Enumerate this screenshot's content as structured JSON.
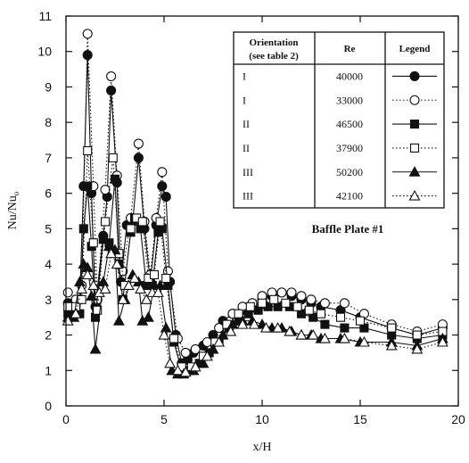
{
  "chart_data": {
    "type": "line",
    "title": "",
    "xlabel": "x/H",
    "ylabel": "Nu/Nu",
    "ylabel_subscript": "o",
    "xlim": [
      0,
      20
    ],
    "ylim": [
      0,
      11
    ],
    "xticks": [
      0,
      5,
      10,
      15,
      20
    ],
    "yticks": [
      0,
      1,
      2,
      3,
      4,
      5,
      6,
      7,
      8,
      9,
      10,
      11
    ],
    "grid": false,
    "legend_table": {
      "headers": [
        "Orientation",
        "(see table 2)",
        "Re",
        "Legend"
      ],
      "rows": [
        {
          "orientation": "I",
          "re": "40000"
        },
        {
          "orientation": "I",
          "re": "33000"
        },
        {
          "orientation": "II",
          "re": "46500"
        },
        {
          "orientation": "II",
          "re": "37900"
        },
        {
          "orientation": "III",
          "re": "50200"
        },
        {
          "orientation": "III",
          "re": "42100"
        }
      ]
    },
    "annotation": "Baffle Plate #1",
    "series": [
      {
        "marker": "circle-filled",
        "line": "solid",
        "points": [
          [
            0.1,
            2.9
          ],
          [
            0.4,
            2.8
          ],
          [
            0.7,
            3.0
          ],
          [
            0.9,
            6.2
          ],
          [
            1.1,
            9.9
          ],
          [
            1.3,
            6.0
          ],
          [
            1.5,
            2.8
          ],
          [
            1.9,
            4.8
          ],
          [
            2.1,
            5.9
          ],
          [
            2.3,
            8.9
          ],
          [
            2.6,
            6.3
          ],
          [
            2.8,
            3.5
          ],
          [
            3.1,
            5.1
          ],
          [
            3.4,
            5.2
          ],
          [
            3.7,
            7.0
          ],
          [
            4.0,
            5.0
          ],
          [
            4.3,
            3.5
          ],
          [
            4.6,
            5.1
          ],
          [
            4.9,
            6.2
          ],
          [
            5.1,
            5.9
          ],
          [
            5.3,
            3.5
          ],
          [
            5.6,
            2.0
          ],
          [
            5.9,
            1.2
          ],
          [
            6.2,
            1.3
          ],
          [
            6.5,
            1.5
          ],
          [
            7.0,
            1.7
          ],
          [
            7.5,
            2.0
          ],
          [
            8.0,
            2.4
          ],
          [
            8.5,
            2.6
          ],
          [
            9.0,
            2.7
          ],
          [
            9.5,
            2.8
          ],
          [
            10.0,
            3.0
          ],
          [
            10.5,
            3.1
          ],
          [
            11.0,
            3.2
          ],
          [
            11.5,
            3.1
          ],
          [
            12.0,
            3.0
          ],
          [
            12.5,
            2.9
          ],
          [
            13.0,
            2.8
          ],
          [
            14.0,
            2.7
          ],
          [
            15.0,
            2.5
          ],
          [
            16.6,
            2.2
          ],
          [
            17.9,
            2.0
          ],
          [
            19.2,
            2.2
          ]
        ]
      },
      {
        "marker": "circle-open",
        "line": "dotted",
        "points": [
          [
            0.1,
            3.2
          ],
          [
            0.5,
            3.0
          ],
          [
            0.8,
            3.4
          ],
          [
            1.1,
            10.5
          ],
          [
            1.4,
            6.2
          ],
          [
            1.6,
            3.0
          ],
          [
            2.0,
            6.1
          ],
          [
            2.3,
            9.3
          ],
          [
            2.6,
            6.5
          ],
          [
            2.9,
            3.8
          ],
          [
            3.3,
            5.3
          ],
          [
            3.7,
            7.4
          ],
          [
            4.0,
            5.2
          ],
          [
            4.3,
            3.7
          ],
          [
            4.6,
            5.3
          ],
          [
            4.9,
            6.6
          ],
          [
            5.2,
            3.8
          ],
          [
            5.7,
            1.9
          ],
          [
            6.1,
            1.5
          ],
          [
            6.6,
            1.6
          ],
          [
            7.2,
            1.8
          ],
          [
            7.8,
            2.2
          ],
          [
            8.5,
            2.6
          ],
          [
            9.0,
            2.8
          ],
          [
            9.5,
            2.9
          ],
          [
            10.0,
            3.1
          ],
          [
            10.5,
            3.2
          ],
          [
            11.0,
            3.2
          ],
          [
            11.5,
            3.2
          ],
          [
            12.0,
            3.1
          ],
          [
            12.5,
            3.0
          ],
          [
            13.2,
            2.9
          ],
          [
            14.2,
            2.9
          ],
          [
            15.2,
            2.6
          ],
          [
            16.6,
            2.3
          ],
          [
            17.9,
            2.1
          ],
          [
            19.2,
            2.3
          ]
        ]
      },
      {
        "marker": "square-filled",
        "line": "solid",
        "points": [
          [
            0.1,
            2.6
          ],
          [
            0.4,
            2.6
          ],
          [
            0.7,
            2.6
          ],
          [
            0.9,
            5.0
          ],
          [
            1.1,
            6.2
          ],
          [
            1.3,
            4.5
          ],
          [
            1.5,
            2.5
          ],
          [
            1.9,
            4.7
          ],
          [
            2.2,
            4.6
          ],
          [
            2.5,
            6.4
          ],
          [
            2.7,
            4.0
          ],
          [
            2.9,
            3.0
          ],
          [
            3.3,
            4.9
          ],
          [
            3.5,
            5.3
          ],
          [
            3.8,
            5.0
          ],
          [
            4.1,
            3.4
          ],
          [
            4.4,
            3.4
          ],
          [
            4.7,
            4.9
          ],
          [
            4.9,
            5.0
          ],
          [
            5.2,
            3.4
          ],
          [
            5.5,
            1.8
          ],
          [
            5.9,
            1.0
          ],
          [
            6.3,
            1.0
          ],
          [
            6.8,
            1.2
          ],
          [
            7.3,
            1.5
          ],
          [
            7.8,
            1.8
          ],
          [
            8.3,
            2.2
          ],
          [
            8.8,
            2.4
          ],
          [
            9.3,
            2.6
          ],
          [
            9.8,
            2.7
          ],
          [
            10.3,
            2.8
          ],
          [
            10.8,
            2.8
          ],
          [
            11.4,
            2.8
          ],
          [
            12.0,
            2.6
          ],
          [
            12.6,
            2.5
          ],
          [
            13.2,
            2.3
          ],
          [
            14.2,
            2.2
          ],
          [
            15.2,
            2.2
          ],
          [
            16.6,
            2.0
          ],
          [
            17.9,
            1.9
          ],
          [
            19.2,
            2.0
          ]
        ]
      },
      {
        "marker": "square-open",
        "line": "dotted",
        "points": [
          [
            0.1,
            2.8
          ],
          [
            0.5,
            2.8
          ],
          [
            0.8,
            3.0
          ],
          [
            1.1,
            7.2
          ],
          [
            1.4,
            4.6
          ],
          [
            1.6,
            2.7
          ],
          [
            2.0,
            5.2
          ],
          [
            2.4,
            7.0
          ],
          [
            2.7,
            4.3
          ],
          [
            3.0,
            3.4
          ],
          [
            3.3,
            5.0
          ],
          [
            3.6,
            5.3
          ],
          [
            3.9,
            5.2
          ],
          [
            4.2,
            3.6
          ],
          [
            4.5,
            3.7
          ],
          [
            4.8,
            5.2
          ],
          [
            5.1,
            3.6
          ],
          [
            5.5,
            1.9
          ],
          [
            5.9,
            1.1
          ],
          [
            6.4,
            1.1
          ],
          [
            7.0,
            1.4
          ],
          [
            7.6,
            1.8
          ],
          [
            8.2,
            2.3
          ],
          [
            8.8,
            2.6
          ],
          [
            9.4,
            2.8
          ],
          [
            10.0,
            2.9
          ],
          [
            10.6,
            3.0
          ],
          [
            11.2,
            2.9
          ],
          [
            11.8,
            2.8
          ],
          [
            12.4,
            2.7
          ],
          [
            13.0,
            2.6
          ],
          [
            14.0,
            2.5
          ],
          [
            15.0,
            2.4
          ],
          [
            16.6,
            2.2
          ],
          [
            17.9,
            2.0
          ],
          [
            19.2,
            2.1
          ]
        ]
      },
      {
        "marker": "triangle-filled",
        "line": "solid",
        "points": [
          [
            0.1,
            2.5
          ],
          [
            0.4,
            2.5
          ],
          [
            0.7,
            3.5
          ],
          [
            0.9,
            4.0
          ],
          [
            1.1,
            3.9
          ],
          [
            1.3,
            3.1
          ],
          [
            1.5,
            1.6
          ],
          [
            1.9,
            3.5
          ],
          [
            2.2,
            4.5
          ],
          [
            2.5,
            4.4
          ],
          [
            2.7,
            2.4
          ],
          [
            3.0,
            3.0
          ],
          [
            3.4,
            3.7
          ],
          [
            3.7,
            3.5
          ],
          [
            3.9,
            2.4
          ],
          [
            4.2,
            2.5
          ],
          [
            4.5,
            3.4
          ],
          [
            4.8,
            3.4
          ],
          [
            5.1,
            2.2
          ],
          [
            5.4,
            1.0
          ],
          [
            5.7,
            0.9
          ],
          [
            6.0,
            0.9
          ],
          [
            6.5,
            1.0
          ],
          [
            7.0,
            1.2
          ],
          [
            7.5,
            1.6
          ],
          [
            8.0,
            2.0
          ],
          [
            8.5,
            2.3
          ],
          [
            9.0,
            2.4
          ],
          [
            9.5,
            2.4
          ],
          [
            10.0,
            2.3
          ],
          [
            10.5,
            2.2
          ],
          [
            11.0,
            2.2
          ],
          [
            11.5,
            2.1
          ],
          [
            12.0,
            2.0
          ],
          [
            12.5,
            2.0
          ],
          [
            13.0,
            1.9
          ],
          [
            14.0,
            1.9
          ],
          [
            15.0,
            1.8
          ],
          [
            16.6,
            1.8
          ],
          [
            17.9,
            1.7
          ],
          [
            19.2,
            1.9
          ]
        ]
      },
      {
        "marker": "triangle-open",
        "line": "dotted",
        "points": [
          [
            0.1,
            2.4
          ],
          [
            0.5,
            2.6
          ],
          [
            0.8,
            3.3
          ],
          [
            1.1,
            3.7
          ],
          [
            1.4,
            3.4
          ],
          [
            1.7,
            3.2
          ],
          [
            2.0,
            3.3
          ],
          [
            2.3,
            4.3
          ],
          [
            2.6,
            4.0
          ],
          [
            2.9,
            3.0
          ],
          [
            3.2,
            3.4
          ],
          [
            3.5,
            3.6
          ],
          [
            3.8,
            3.3
          ],
          [
            4.1,
            3.0
          ],
          [
            4.4,
            3.2
          ],
          [
            4.7,
            3.2
          ],
          [
            5.0,
            2.0
          ],
          [
            5.3,
            1.2
          ],
          [
            5.7,
            1.0
          ],
          [
            6.1,
            0.95
          ],
          [
            6.6,
            1.1
          ],
          [
            7.2,
            1.4
          ],
          [
            7.8,
            1.8
          ],
          [
            8.4,
            2.1
          ],
          [
            9.0,
            2.3
          ],
          [
            9.6,
            2.3
          ],
          [
            10.2,
            2.2
          ],
          [
            10.8,
            2.2
          ],
          [
            11.4,
            2.1
          ],
          [
            12.0,
            2.0
          ],
          [
            12.6,
            2.0
          ],
          [
            13.2,
            1.9
          ],
          [
            14.2,
            1.9
          ],
          [
            15.2,
            1.8
          ],
          [
            16.6,
            1.7
          ],
          [
            17.9,
            1.6
          ],
          [
            19.2,
            1.8
          ]
        ]
      }
    ]
  }
}
